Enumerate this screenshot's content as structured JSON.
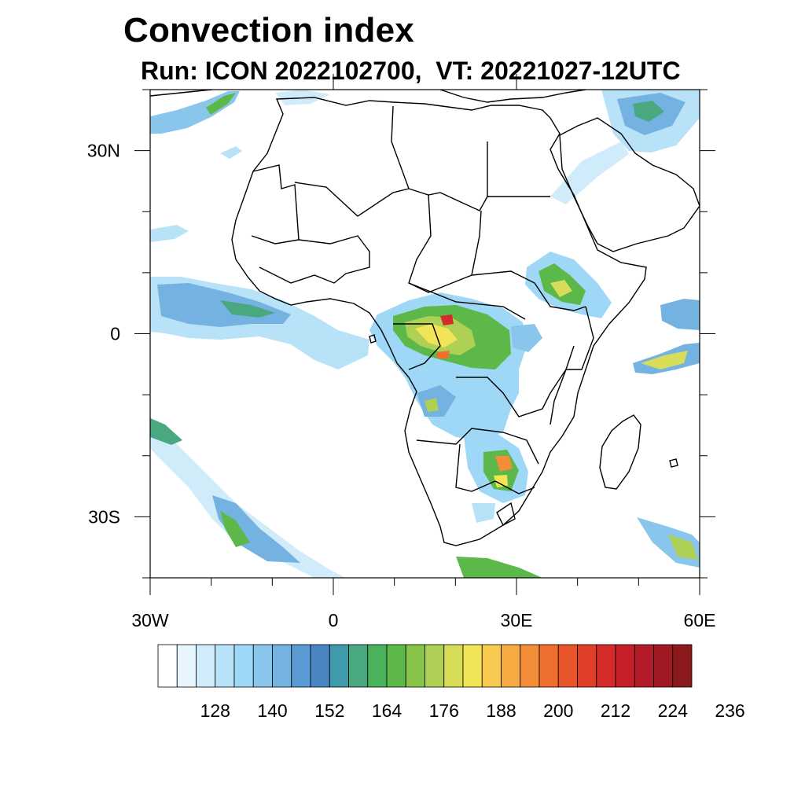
{
  "title": "Convection index",
  "subtitle": "Run: ICON 2022102700,  VT: 20221027-12UTC",
  "map": {
    "lon_range": [
      -30,
      60
    ],
    "lat_range": [
      -40,
      40
    ],
    "lat_labels": [
      {
        "lat": 30,
        "text": "30N"
      },
      {
        "lat": 0,
        "text": "0"
      },
      {
        "lat": -30,
        "text": "30S"
      }
    ],
    "lon_labels": [
      {
        "lon": -30,
        "text": "30W"
      },
      {
        "lon": 0,
        "text": "0"
      },
      {
        "lon": 30,
        "text": "30E"
      },
      {
        "lon": 60,
        "text": "60E"
      }
    ]
  },
  "colorbar": {
    "labels": [
      "128",
      "140",
      "152",
      "164",
      "176",
      "188",
      "200",
      "212",
      "224",
      "236"
    ],
    "colors": [
      "#ffffff",
      "#e6f5fd",
      "#d0ecfa",
      "#b7e2f8",
      "#9ed8f6",
      "#8ac6ec",
      "#74b2e1",
      "#5a9bd3",
      "#4a86c2",
      "#3f9bab",
      "#4aa881",
      "#49b25a",
      "#5cb949",
      "#88c44a",
      "#aed054",
      "#d7dd59",
      "#f1e457",
      "#f8cb50",
      "#f7ab43",
      "#f48d38",
      "#ef6f2f",
      "#e9552b",
      "#e03f29",
      "#d62b2b",
      "#c71f2a",
      "#b31b28",
      "#9f1a24",
      "#8b1a1c"
    ]
  }
}
